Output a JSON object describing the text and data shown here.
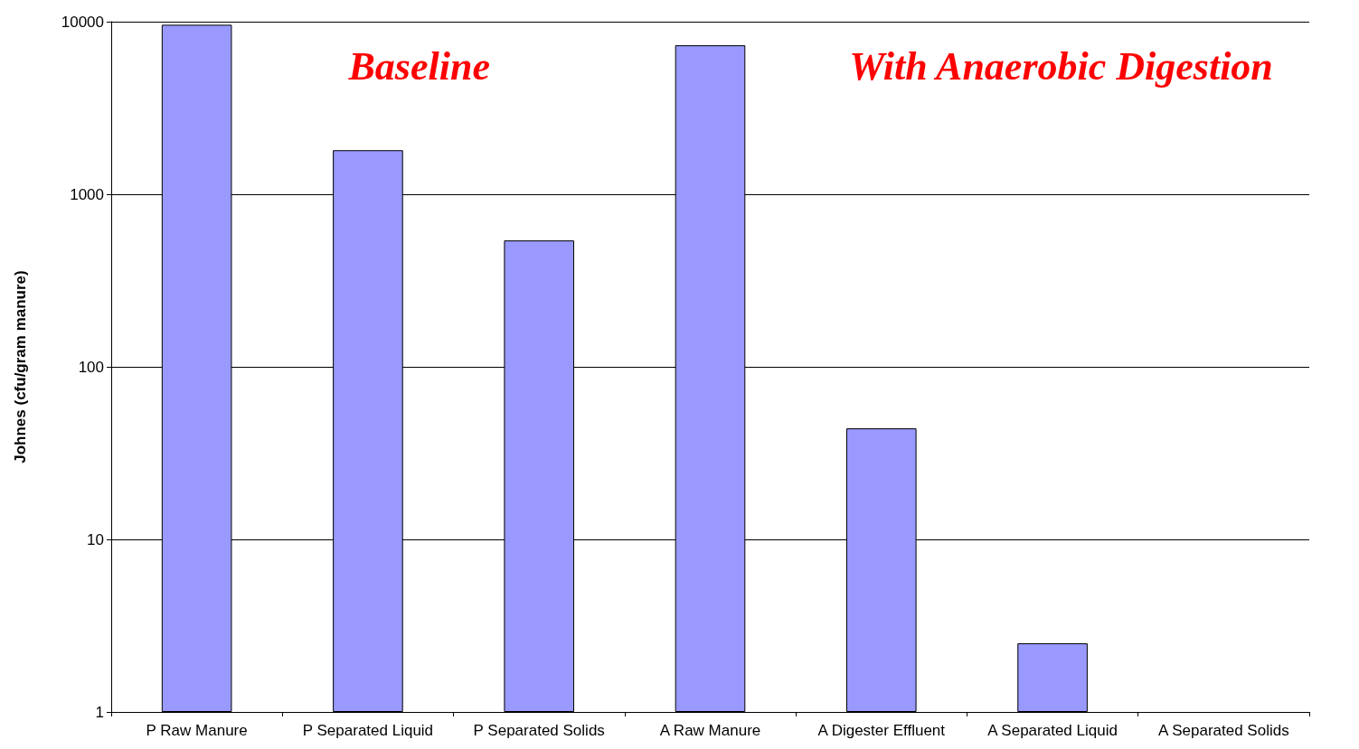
{
  "chart_data": {
    "type": "bar",
    "ylabel": "Johnes (cfu/gram manure)",
    "categories": [
      "P Raw Manure",
      "P Separated Liquid",
      "P Separated Solids",
      "A Raw Manure",
      "A Digester Effluent",
      "A Separated Liquid",
      "A Separated Solids"
    ],
    "values": [
      9600,
      1800,
      540,
      7300,
      44,
      2.5,
      null
    ],
    "color": "#9999ff",
    "log": true,
    "ylim": [
      1,
      10000
    ],
    "yticks": [
      1,
      10,
      100,
      1000,
      10000
    ],
    "grid": "y",
    "annotations": [
      "Baseline",
      "With Anaerobic Digestion"
    ]
  }
}
